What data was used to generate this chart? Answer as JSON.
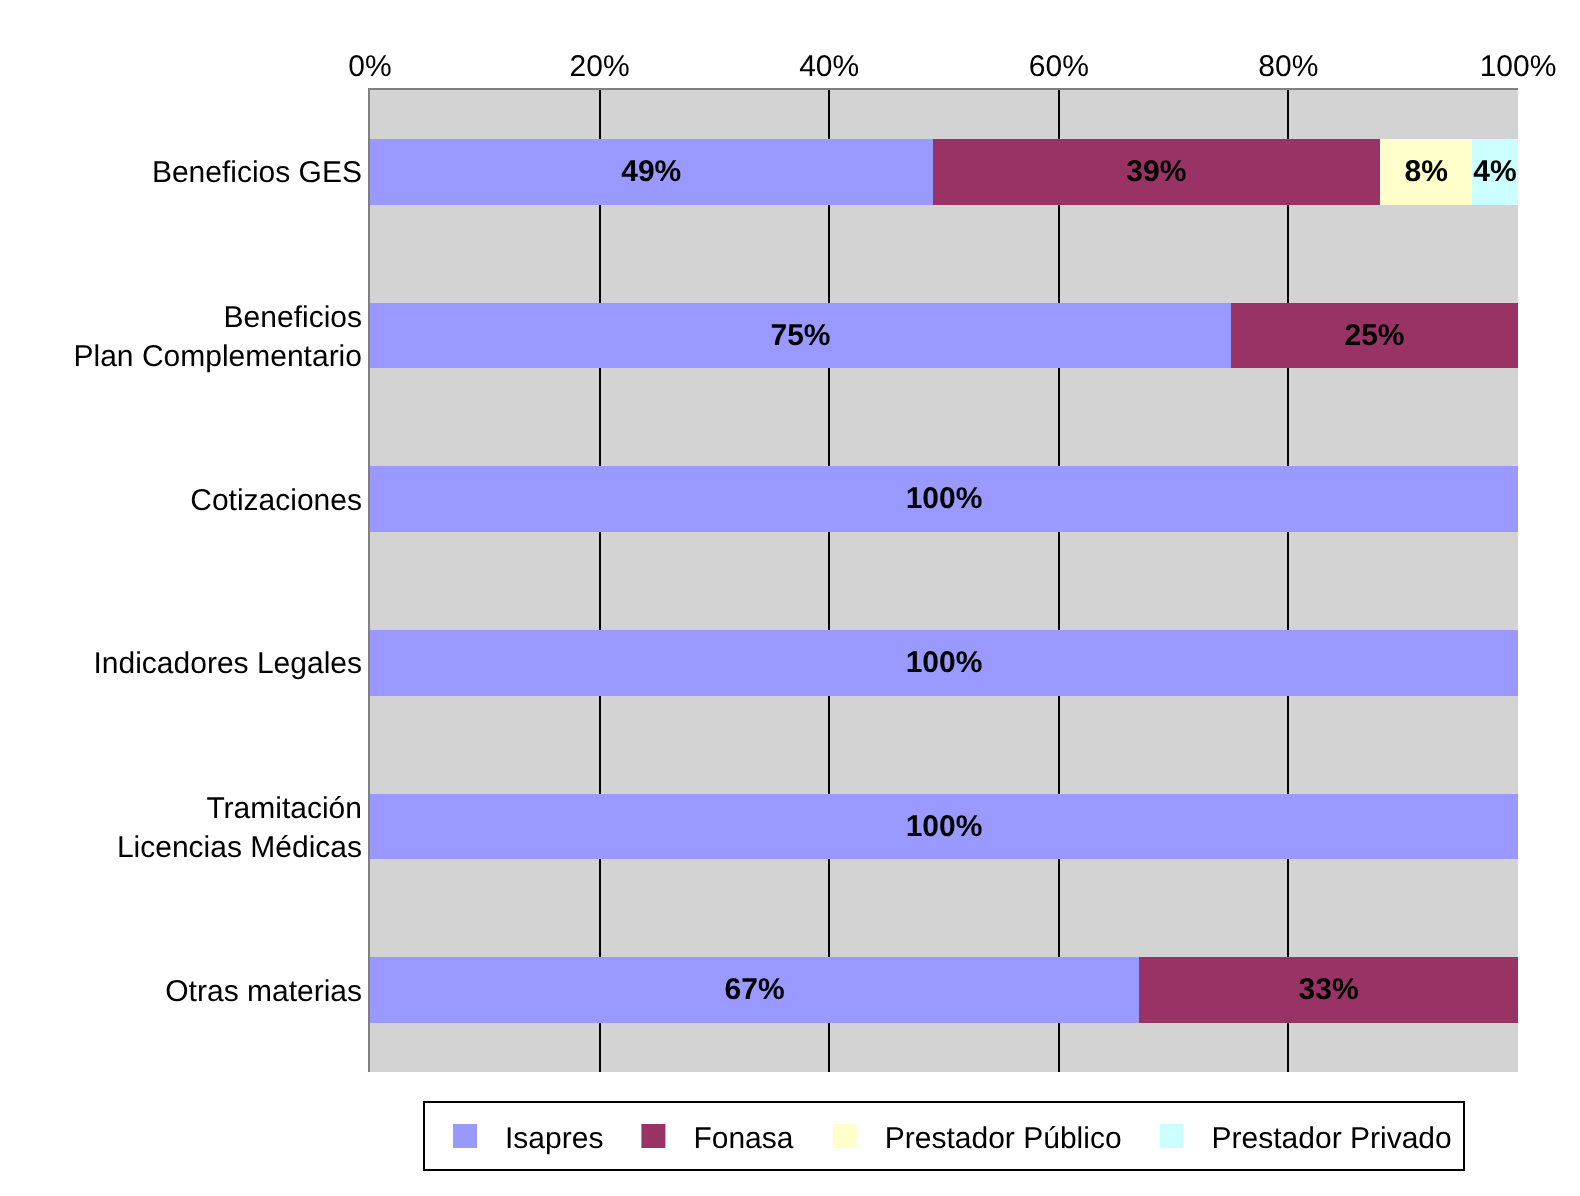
{
  "chart_data": {
    "type": "bar",
    "orientation": "horizontal",
    "stacked": true,
    "grid": "x",
    "legend": "bottom",
    "categories": [
      "Beneficios GES",
      "Beneficios\nPlan Complementario",
      "Cotizaciones",
      "Indicadores Legales",
      "Tramitación\nLicencias Médicas",
      "Otras materias"
    ],
    "series": [
      {
        "name": "Isapres",
        "color": "#9999ff",
        "values": [
          49,
          75,
          100,
          100,
          100,
          67
        ],
        "value_labels": [
          "49%",
          "75%",
          "100%",
          "100%",
          "100%",
          "67%"
        ]
      },
      {
        "name": "Fonasa",
        "color": "#993366",
        "values": [
          39,
          25,
          null,
          null,
          null,
          33
        ],
        "value_labels": [
          "39%",
          "25%",
          null,
          null,
          null,
          "33%"
        ]
      },
      {
        "name": "Prestador Público",
        "color": "#ffffcc",
        "values": [
          8,
          null,
          null,
          null,
          null,
          null
        ],
        "value_labels": [
          "8%",
          null,
          null,
          null,
          null,
          null
        ]
      },
      {
        "name": "Prestador Privado",
        "color": "#ccffff",
        "values": [
          4,
          null,
          null,
          null,
          null,
          null
        ],
        "value_labels": [
          "4%",
          null,
          null,
          null,
          null,
          null
        ]
      }
    ],
    "xlim": [
      0,
      100
    ],
    "xticks": [
      {
        "value": 0,
        "label": "0%"
      },
      {
        "value": 20,
        "label": "20%"
      },
      {
        "value": 40,
        "label": "40%"
      },
      {
        "value": 60,
        "label": "60%"
      },
      {
        "value": 80,
        "label": "80%"
      },
      {
        "value": 100,
        "label": "100%"
      }
    ]
  }
}
